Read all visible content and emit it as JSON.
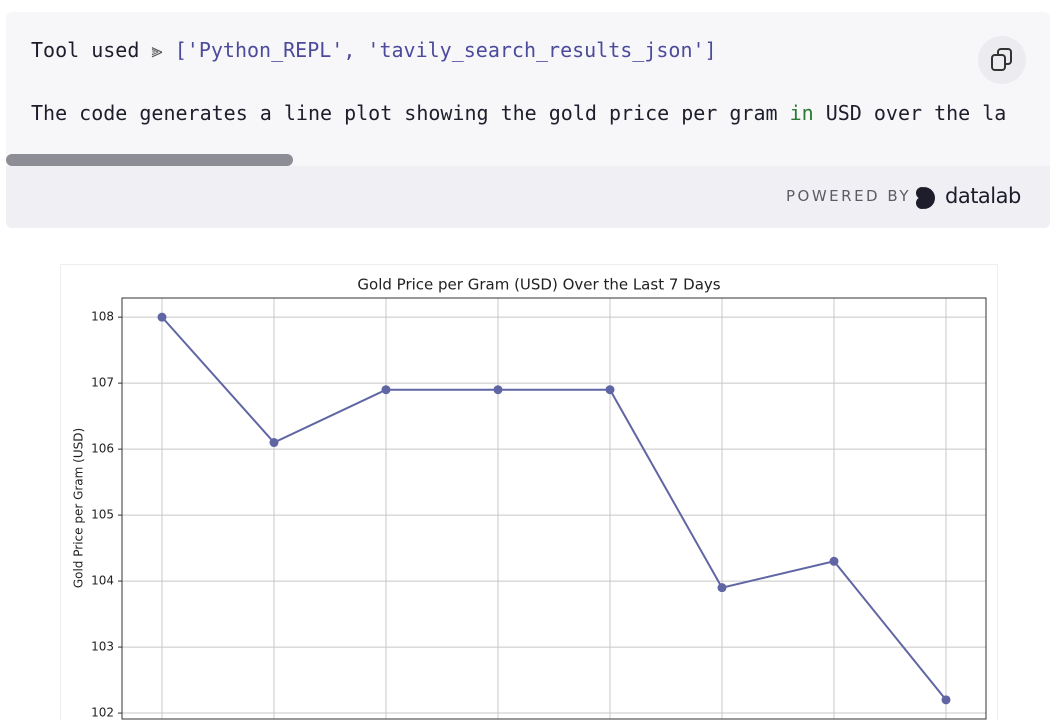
{
  "code_block": {
    "tool_label": "Tool used",
    "tool_arrow": "⫸",
    "tool_list": "['Python_REPL', 'tavily_search_results_json']",
    "description_start": "The code generates a line plot showing the gold price per gram ",
    "description_keyword": "in",
    "description_end": " USD over the la",
    "powered_by": "POWERED BY",
    "brand": "datalab"
  },
  "chart_data": {
    "type": "line",
    "title": "Gold Price per Gram (USD) Over the Last 7 Days",
    "y_label": "Gold Price per Gram (USD)",
    "categories": [
      null,
      null,
      null,
      null,
      null,
      null,
      null,
      null
    ],
    "series": [
      {
        "color": "#6066a3",
        "values": [
          108.0,
          106.1,
          106.9,
          106.9,
          106.9,
          103.9,
          104.3,
          102.2
        ]
      }
    ],
    "ylim": [
      101.91,
      108.29
    ],
    "yticks": [
      102,
      103,
      104,
      105,
      106,
      107,
      108
    ],
    "grid": true
  }
}
